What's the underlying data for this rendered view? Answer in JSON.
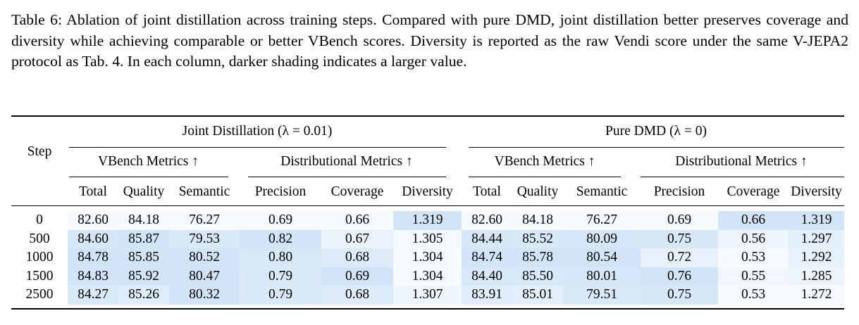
{
  "caption": "Table 6: Ablation of joint distillation across training steps. Compared with pure DMD, joint distillation better preserves coverage and diversity while achieving comparable or better VBench scores. Diversity is reported as the raw Vendi score under the same V-JEPA2 protocol as Tab. 4. In each column, darker shading indicates a larger value.",
  "header": {
    "step": "Step",
    "group_joint": "Joint Distillation (λ = 0.01)",
    "group_pure": "Pure DMD (λ = 0)",
    "sub_vbench": "VBench Metrics ↑",
    "sub_dist": "Distributional Metrics ↑",
    "columns": [
      "Total",
      "Quality",
      "Semantic",
      "Precision",
      "Coverage",
      "Diversity",
      "Total",
      "Quality",
      "Semantic",
      "Precision",
      "Coverage",
      "Diversity"
    ]
  },
  "rows": [
    {
      "step": "0",
      "values": [
        "82.60",
        "84.18",
        "76.27",
        "0.69",
        "0.66",
        "1.319",
        "82.60",
        "84.18",
        "76.27",
        "0.69",
        "0.66",
        "1.319"
      ]
    },
    {
      "step": "500",
      "values": [
        "84.60",
        "85.87",
        "79.53",
        "0.82",
        "0.67",
        "1.305",
        "84.44",
        "85.52",
        "80.09",
        "0.75",
        "0.56",
        "1.297"
      ]
    },
    {
      "step": "1000",
      "values": [
        "84.78",
        "85.85",
        "80.52",
        "0.80",
        "0.68",
        "1.304",
        "84.74",
        "85.78",
        "80.54",
        "0.72",
        "0.53",
        "1.292"
      ]
    },
    {
      "step": "1500",
      "values": [
        "84.83",
        "85.92",
        "80.47",
        "0.79",
        "0.69",
        "1.304",
        "84.40",
        "85.50",
        "80.01",
        "0.76",
        "0.55",
        "1.285"
      ]
    },
    {
      "step": "2500",
      "values": [
        "84.27",
        "85.26",
        "80.32",
        "0.79",
        "0.68",
        "1.307",
        "83.91",
        "85.01",
        "79.51",
        "0.75",
        "0.53",
        "1.272"
      ]
    }
  ],
  "shading_color": "#3d8fe0"
}
